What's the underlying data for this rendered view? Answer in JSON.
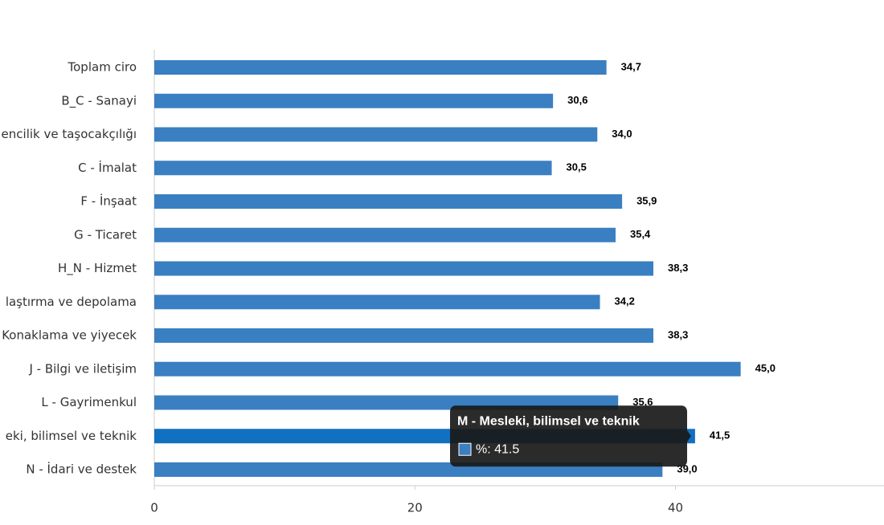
{
  "chart_data": {
    "type": "barh",
    "categories": [
      "Toplam ciro",
      "B_C - Sanayi",
      "encilik ve taşocakçılığı",
      "C - İmalat",
      "F - İnşaat",
      "G - Ticaret",
      "H_N - Hizmet",
      "laştırma ve depolama",
      "Konaklama ve yiyecek",
      "J - Bilgi ve iletişim",
      "L - Gayrimenkul",
      "eki, bilimsel ve teknik",
      "N - İdari ve destek"
    ],
    "values": [
      34.7,
      30.6,
      34.0,
      30.5,
      35.9,
      35.4,
      38.3,
      34.2,
      38.3,
      45.0,
      35.6,
      41.5,
      39.0
    ],
    "value_labels": [
      "34,7",
      "30,6",
      "34,0",
      "30,5",
      "35,9",
      "35,4",
      "38,3",
      "34,2",
      "38,3",
      "45,0",
      "35,6",
      "41,5",
      "39,0"
    ],
    "color": "#3a7fc1",
    "highlight_color": "#1170c0",
    "xlim": [
      0,
      56
    ],
    "xticks": [
      0,
      20,
      40
    ],
    "tooltip": {
      "category_index": 11,
      "title": "M - Mesleki, bilimsel ve teknik",
      "text": "%: 41.5"
    }
  }
}
